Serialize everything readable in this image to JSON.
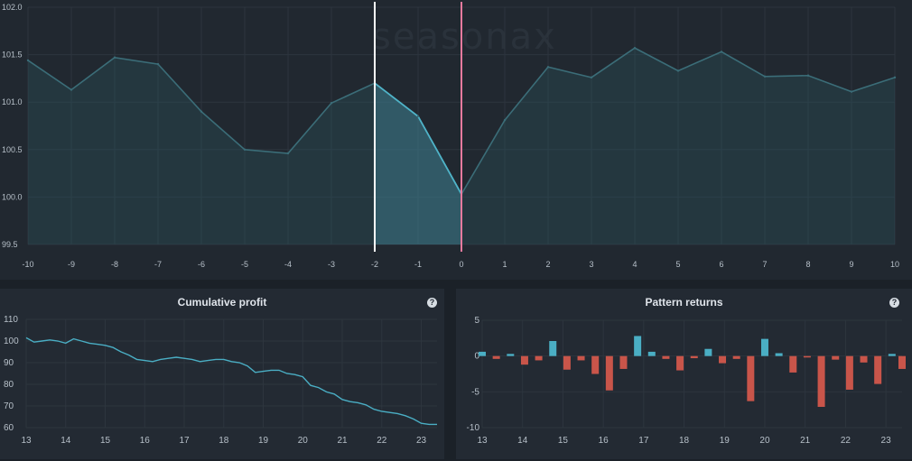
{
  "colors": {
    "line_main": "#3b6d78",
    "line_highlight": "#4fb3c8",
    "fill_main": "rgba(44,86,97,0.32)",
    "fill_highlight": "rgba(72,145,165,0.38)",
    "marker_start": "#ffffff",
    "marker_end": "#e67a9e",
    "bar_positive": "#4aaec4",
    "bar_negative": "#c9554a",
    "cumulative_line": "#4aaec4",
    "grid": "#2d353e",
    "tick_text": "#b7c0c9"
  },
  "watermark": "seasonax",
  "cumulative": {
    "title": "Cumulative profit",
    "help": "?"
  },
  "pattern": {
    "title": "Pattern returns",
    "help": "?"
  },
  "chart_data": [
    {
      "type": "area",
      "x": [
        -10,
        -9,
        -8,
        -7,
        -6,
        -5,
        -4,
        -3,
        -2,
        -1,
        0,
        1,
        2,
        3,
        4,
        5,
        6,
        7,
        8,
        9,
        10
      ],
      "y": [
        101.44,
        101.13,
        101.47,
        101.4,
        100.9,
        100.5,
        100.46,
        100.99,
        101.2,
        100.85,
        100.03,
        100.81,
        101.37,
        101.26,
        101.57,
        101.33,
        101.53,
        101.27,
        101.28,
        101.11,
        101.26
      ],
      "xlim": [
        -10,
        10
      ],
      "ylim": [
        99.5,
        102.0
      ],
      "xticks": [
        -10,
        -9,
        -8,
        -7,
        -6,
        -5,
        -4,
        -3,
        -2,
        -1,
        0,
        1,
        2,
        3,
        4,
        5,
        6,
        7,
        8,
        9,
        10
      ],
      "yticks": [
        99.5,
        100.0,
        100.5,
        101.0,
        101.5,
        102.0
      ],
      "ytick_labels": [
        "99.5",
        "100.0",
        "100.5",
        "101.0",
        "101.5",
        "102.0"
      ],
      "highlight_range": [
        -2,
        0
      ],
      "grid": true
    },
    {
      "type": "line",
      "title": "Cumulative profit",
      "xlim": [
        13,
        23.4
      ],
      "ylim": [
        60,
        110
      ],
      "xticks": [
        13,
        14,
        15,
        16,
        17,
        18,
        19,
        20,
        21,
        22,
        23
      ],
      "yticks": [
        60,
        70,
        80,
        90,
        100,
        110
      ],
      "x": [
        13,
        13.2,
        13.4,
        13.6,
        13.8,
        14.0,
        14.2,
        14.4,
        14.6,
        14.8,
        15.0,
        15.2,
        15.4,
        15.6,
        15.8,
        16.0,
        16.2,
        16.4,
        16.6,
        16.8,
        17.0,
        17.2,
        17.4,
        17.6,
        17.8,
        18.0,
        18.2,
        18.4,
        18.6,
        18.8,
        19.0,
        19.2,
        19.4,
        19.6,
        19.8,
        20.0,
        20.2,
        20.4,
        20.6,
        20.8,
        21.0,
        21.2,
        21.4,
        21.6,
        21.8,
        22.0,
        22.2,
        22.4,
        22.6,
        22.8,
        23.0,
        23.2,
        23.4
      ],
      "y": [
        101.5,
        99.5,
        100.0,
        100.5,
        100.0,
        99.0,
        101.0,
        100.0,
        99.0,
        98.5,
        98.0,
        97.0,
        95.0,
        93.5,
        91.5,
        91.0,
        90.5,
        91.5,
        92.0,
        92.5,
        92.0,
        91.5,
        90.5,
        91.0,
        91.5,
        91.5,
        90.5,
        90.0,
        88.5,
        85.5,
        86.0,
        86.5,
        86.5,
        85.0,
        84.5,
        83.5,
        79.5,
        78.5,
        76.5,
        75.5,
        73.0,
        72.0,
        71.5,
        70.5,
        68.5,
        67.5,
        67.0,
        66.5,
        65.5,
        64.0,
        62.0,
        61.5,
        61.5
      ],
      "grid": true
    },
    {
      "type": "bar",
      "title": "Pattern returns",
      "xlim": [
        13,
        23.4
      ],
      "ylim": [
        -10,
        5
      ],
      "xticks": [
        13,
        14,
        15,
        16,
        17,
        18,
        19,
        20,
        21,
        22,
        23
      ],
      "yticks": [
        -10,
        -5,
        0,
        5
      ],
      "x": [
        13.0,
        13.35,
        13.7,
        14.05,
        14.4,
        14.75,
        15.1,
        15.45,
        15.8,
        16.15,
        16.5,
        16.85,
        17.2,
        17.55,
        17.9,
        18.25,
        18.6,
        18.95,
        19.3,
        19.65,
        20.0,
        20.35,
        20.7,
        21.05,
        21.4,
        21.75,
        22.1,
        22.45,
        22.8,
        23.15,
        23.4
      ],
      "values": [
        0.6,
        -0.4,
        0.3,
        -1.2,
        -0.6,
        2.1,
        -1.9,
        -0.6,
        -2.5,
        -4.8,
        -1.8,
        2.8,
        0.6,
        -0.4,
        -2.0,
        -0.3,
        1.0,
        -1.0,
        -0.4,
        -6.3,
        2.4,
        0.4,
        -2.3,
        -0.2,
        -7.1,
        -0.5,
        -4.7,
        -0.9,
        -3.9,
        0.3,
        -1.8
      ],
      "grid": true
    }
  ]
}
